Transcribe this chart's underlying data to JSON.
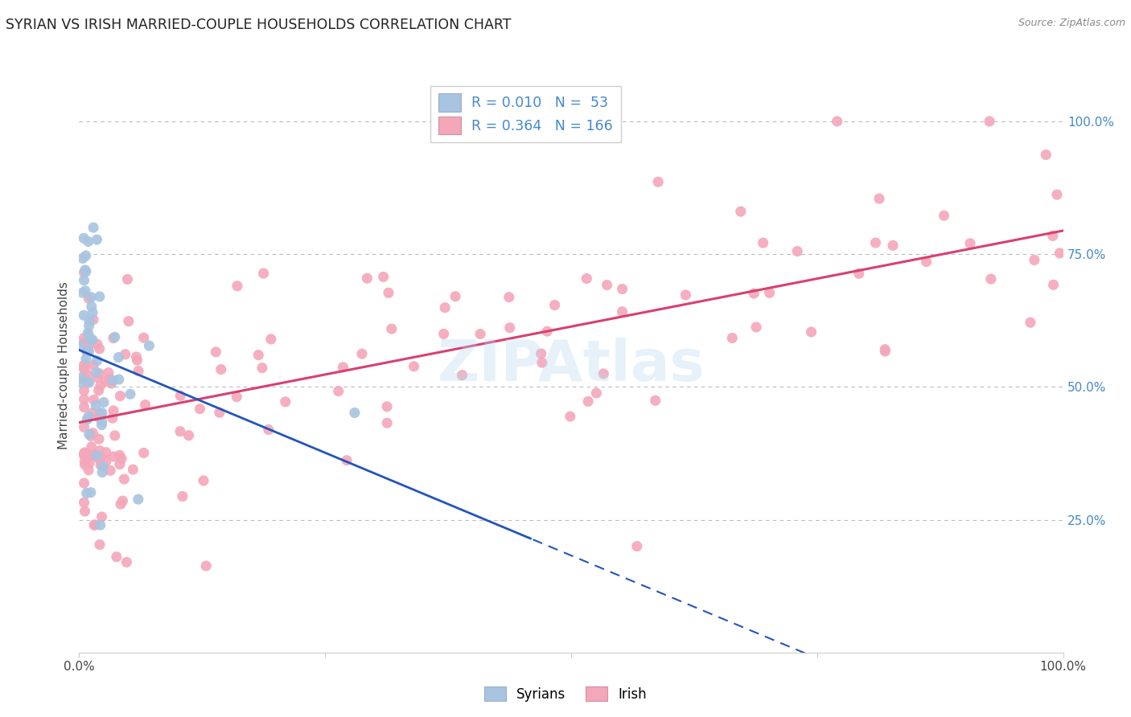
{
  "title": "SYRIAN VS IRISH MARRIED-COUPLE HOUSEHOLDS CORRELATION CHART",
  "source": "Source: ZipAtlas.com",
  "ylabel": "Married-couple Households",
  "syrian_R": 0.01,
  "syrian_N": 53,
  "irish_R": 0.364,
  "irish_N": 166,
  "syrian_color": "#a8c4e0",
  "irish_color": "#f4a7b9",
  "syrian_line_color": "#2255bb",
  "irish_line_color": "#d94070",
  "background_color": "#ffffff",
  "grid_color": "#bbbbbb",
  "axis_label_color": "#4488cc",
  "title_color": "#222222",
  "source_color": "#888888"
}
